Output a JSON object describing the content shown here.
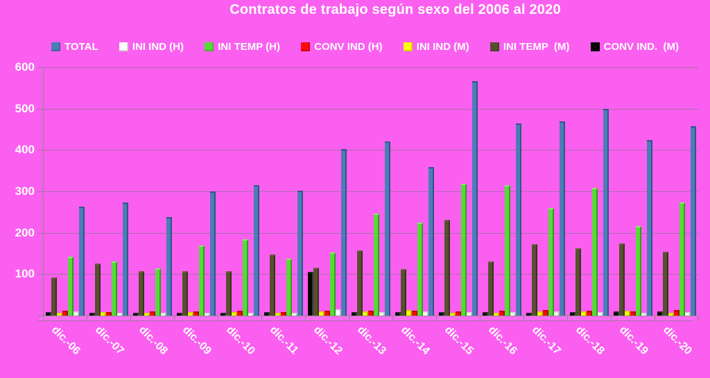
{
  "chart_data": {
    "type": "bar",
    "title": "Contratos de trabajo según sexo del 2006 al 2020",
    "xlabel": "",
    "ylabel": "",
    "ylim": [
      0,
      600
    ],
    "yticks": [
      100,
      200,
      300,
      400,
      500,
      600
    ],
    "grid": true,
    "legend_position": "top",
    "background_color": "#FA5FF0",
    "gridline_color": "#A76FA7",
    "axis_color": "#8C8C8C",
    "text_color": "#FFFFFF",
    "bar_render_order": "reverse-of-legend (3D chart: CONV IND. (M) leftmost, TOTAL rightmost in each group)",
    "categories": [
      "dic.-06",
      "dic.-07",
      "dic.-08",
      "dic.-09",
      "dic.-10",
      "dic.-11",
      "dic.-12",
      "dic.-13",
      "dic.-14",
      "dic.-15",
      "dic.-16",
      "dic.-17",
      "dic.-18",
      "dic.-19",
      "dic.-20"
    ],
    "series": [
      {
        "name": "TOTAL",
        "color": "#4C7DB8",
        "side_color": "#2F5685",
        "top_color": "#2F5685",
        "values": [
          263,
          273,
          238,
          300,
          315,
          302,
          403,
          420,
          359,
          567,
          464,
          469,
          500,
          424,
          457
        ]
      },
      {
        "name": "INI IND (H)",
        "color": "#FFFFFF",
        "side_color": "#B9B9B9",
        "top_color": "#D9D9D9",
        "values": [
          10,
          4,
          6,
          7,
          6,
          6,
          15,
          8,
          10,
          8,
          8,
          10,
          8,
          6,
          8
        ]
      },
      {
        "name": "INI TEMP (H)",
        "color": "#57DA39",
        "side_color": "#2F9E1A",
        "top_color": "#88EA66",
        "values": [
          142,
          131,
          114,
          170,
          185,
          138,
          153,
          246,
          225,
          318,
          315,
          260,
          308,
          217,
          274
        ]
      },
      {
        "name": "CONV IND (H)",
        "color": "#FC0A0A",
        "side_color": "#AF0000",
        "top_color": "#C80000",
        "values": [
          12,
          9,
          10,
          10,
          12,
          9,
          12,
          12,
          12,
          10,
          12,
          14,
          12,
          10,
          14
        ]
      },
      {
        "name": "INI IND (M)",
        "color": "#FFFF05",
        "side_color": "#B5B500",
        "top_color": "#D8D800",
        "values": [
          6,
          8,
          7,
          8,
          9,
          4,
          10,
          10,
          14,
          6,
          5,
          10,
          10,
          12,
          6
        ]
      },
      {
        "name": "INI TEMP  (M)",
        "color": "#57502F",
        "side_color": "#38331D",
        "top_color": "#6B6138",
        "values": [
          92,
          126,
          108,
          108,
          108,
          148,
          116,
          157,
          113,
          232,
          131,
          173,
          163,
          175,
          154
        ]
      },
      {
        "name": "CONV IND.  (M)",
        "color": "#060606",
        "side_color": "#3A3A3A",
        "top_color": "#262626",
        "values": [
          9,
          4,
          5,
          7,
          6,
          8,
          105,
          8,
          8,
          8,
          8,
          6,
          8,
          10,
          10
        ]
      }
    ]
  }
}
